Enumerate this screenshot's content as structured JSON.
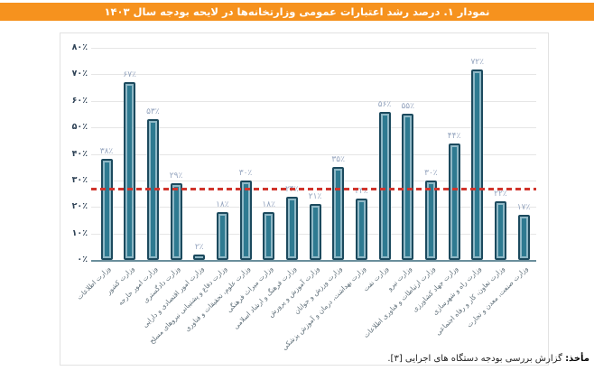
{
  "title_bar": {
    "text": "نمودار ۱. درصد رشد اعتبارات عمومی وزارتخانه‌ها در لایحه بودجه سال ۱۴۰۳",
    "bg_color": "#F6921E",
    "text_color": "#FFFFFF"
  },
  "source_note": {
    "prefix": "مأخذ:",
    "text": " گزارش بررسی بودجه دستگاه های اجرایی [۳]."
  },
  "chart_data": {
    "type": "bar",
    "title": "درصد رشد اعتبارات عمومی وزارتخانه‌ها در لایحه بودجه سال ۱۴۰۳",
    "categories": [
      "وزارت اطلاعات",
      "وزارت کشور",
      "وزارت امور خارجه",
      "وزارت دادگستری",
      "وزارت امور اقتصادی و دارایی",
      "وزارت دفاع و پشتیبانی نیروهای مسلح",
      "وزارت علوم، تحقیقات و فناوری",
      "وزارت میراث فرهنگی",
      "وزارت فرهنگ و ارشاد اسلامی",
      "وزارت آموزش و پرورش",
      "وزارت ورزش و جوانان",
      "وزارت بهداشت، درمان و آموزش پزشکی",
      "وزارت نفت",
      "وزارت نیرو",
      "وزارت ارتباطات و فناوری اطلاعات",
      "وزارت جهاد کشاورزی",
      "وزارت راه و شهرسازی",
      "وزارت تعاون، کار و رفاه اجتماعی",
      "وزارت صنعت، معدن و تجارت"
    ],
    "values": [
      38,
      67,
      53,
      29,
      2,
      18,
      30,
      18,
      24,
      21,
      35,
      23,
      56,
      55,
      30,
      44,
      72,
      22,
      17
    ],
    "value_labels": [
      "۳۸٪",
      "۶۷٪",
      "۵۳٪",
      "۲۹٪",
      "۲٪",
      "۱۸٪",
      "۳۰٪",
      "۱۸٪",
      "۲۴٪",
      "۲۱٪",
      "۳۵٪",
      "۲۳٪",
      "۵۶٪",
      "۵۵٪",
      "۳۰٪",
      "۴۴٪",
      "۷۲٪",
      "۲۲٪",
      "۱۷٪"
    ],
    "y_ticks": {
      "values": [
        0,
        10,
        20,
        30,
        40,
        50,
        60,
        70,
        80
      ],
      "labels": [
        "۰٪",
        "۱۰٪",
        "۲۰٪",
        "۳۰٪",
        "۴۰٪",
        "۵۰٪",
        "۶۰٪",
        "۷۰٪",
        "۸۰٪"
      ]
    },
    "ylim": [
      0,
      80
    ],
    "grid": true,
    "legend": "none",
    "reference_line": {
      "value": 27,
      "style": "dashed",
      "color": "#D0342C"
    },
    "colors": {
      "bar_fill": "#2E7A91",
      "bar_border": "#1C4A5E",
      "bar_inner_stroke": "#8FB8C6",
      "value_label": "#94A4BE",
      "axis_line": "#6A8E9C",
      "gridline": "#E6E6E6",
      "y_tick_label": "#2F4256",
      "x_tick_label": "#5E6E78"
    }
  }
}
